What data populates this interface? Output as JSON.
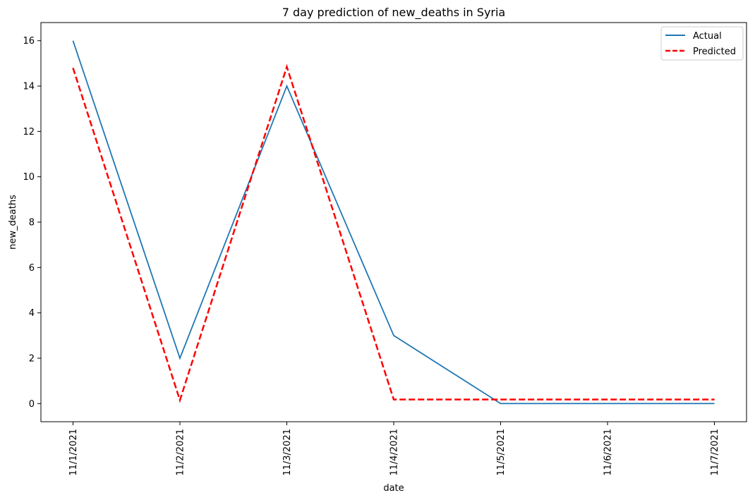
{
  "chart_data": {
    "type": "line",
    "title": "7 day prediction of new_deaths in Syria",
    "xlabel": "date",
    "ylabel": "new_deaths",
    "categories": [
      "11/1/2021",
      "11/2/2021",
      "11/3/2021",
      "11/4/2021",
      "11/5/2021",
      "11/6/2021",
      "11/7/2021"
    ],
    "ylim": [
      -0.8,
      16.8
    ],
    "yticks": [
      0,
      2,
      4,
      6,
      8,
      10,
      12,
      14,
      16
    ],
    "grid": false,
    "legend_position": "upper right",
    "series": [
      {
        "name": "Actual",
        "values": [
          16,
          2,
          14,
          3,
          0,
          0,
          0
        ],
        "color": "#1f77b4",
        "style": "solid"
      },
      {
        "name": "Predicted",
        "values": [
          14.8,
          0.15,
          14.85,
          0.18,
          0.18,
          0.18,
          0.18
        ],
        "color": "#ff0000",
        "style": "dashed"
      }
    ]
  }
}
